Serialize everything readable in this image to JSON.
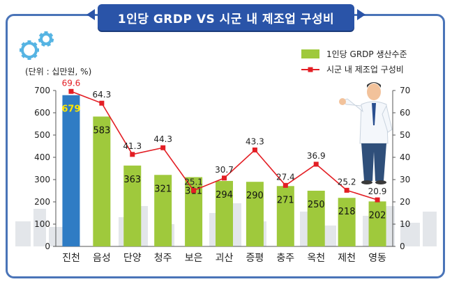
{
  "title": "1인당 GRDP VS 시군 내 제조업 구성비",
  "unit_label": "(단위 : 십만원, %)",
  "chart_data": {
    "type": "bar",
    "categories": [
      "진천",
      "음성",
      "단양",
      "청주",
      "보은",
      "괴산",
      "증평",
      "충주",
      "옥천",
      "제천",
      "영동"
    ],
    "series": [
      {
        "name": "1인당 GRDP 생산수준",
        "chart": "bar",
        "axis": "left",
        "values": [
          679,
          583,
          363,
          321,
          311,
          294,
          290,
          271,
          250,
          218,
          202
        ],
        "color": "#9fc93c",
        "highlight_color": "#2f7cc4",
        "highlight_index": 0
      },
      {
        "name": "시군 내 제조업 구성비",
        "chart": "line",
        "axis": "right",
        "values": [
          69.6,
          64.3,
          41.3,
          44.3,
          25.1,
          30.7,
          43.3,
          27.4,
          36.9,
          25.2,
          20.9
        ],
        "color": "#e31e24"
      }
    ],
    "y_left": {
      "min": 0,
      "max": 700,
      "ticks": [
        0,
        100,
        200,
        300,
        400,
        500,
        600,
        700
      ]
    },
    "y_right": {
      "min": 0,
      "max": 70,
      "ticks": [
        0,
        10,
        20,
        30,
        40,
        50,
        60,
        70
      ]
    },
    "legend_position": "top-right",
    "grid": false
  }
}
